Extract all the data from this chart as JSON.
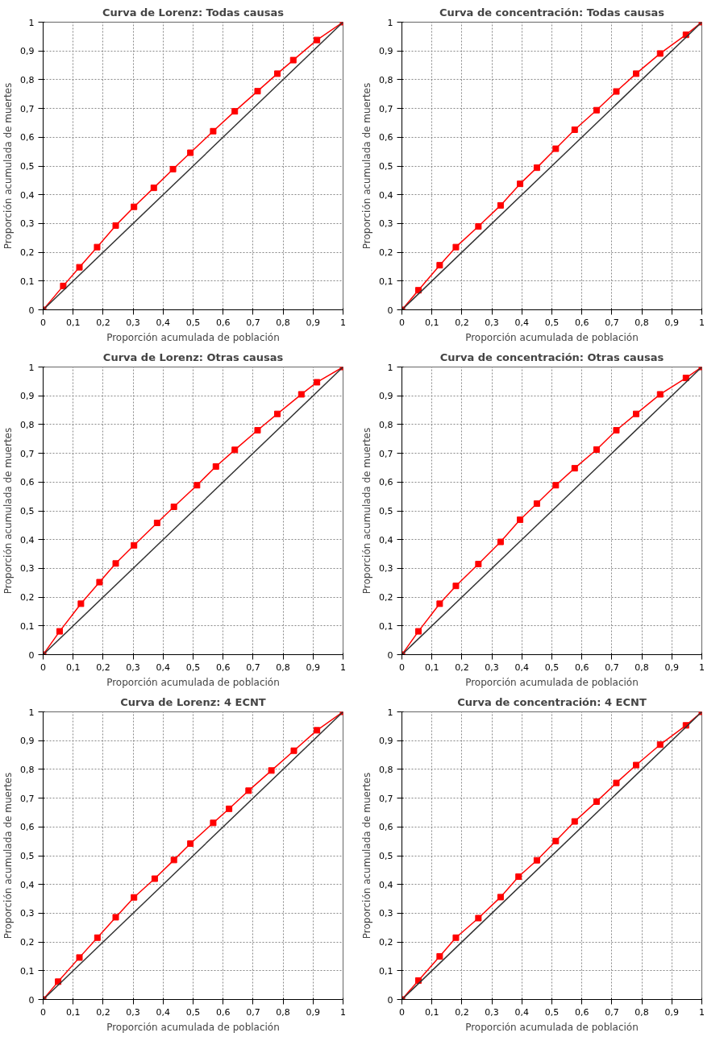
{
  "chart_data": [
    {
      "type": "line",
      "title": "Curva de Lorenz: Todas causas",
      "xlabel": "Proporción acumulada de población",
      "ylabel": "Proporción acumulada de muertes",
      "xlim": [
        0,
        1
      ],
      "ylim": [
        0,
        1
      ],
      "xticks": [
        0,
        {
          "value": 0.1,
          "label": "0,1"
        },
        {
          "value": 0.2,
          "label": "0,2"
        },
        {
          "value": 0.3,
          "label": "0,3"
        },
        {
          "value": 0.4,
          "label": "0,4"
        },
        {
          "value": 0.5,
          "label": "0,5"
        },
        {
          "value": 0.6,
          "label": "0,6"
        },
        {
          "value": 0.7,
          "label": "0,7"
        },
        {
          "value": 0.8,
          "label": "0,8"
        },
        {
          "value": 0.9,
          "label": "0,9"
        },
        1
      ],
      "yticks": [
        0,
        {
          "value": 0.1,
          "label": "0,1"
        },
        {
          "value": 0.2,
          "label": "0,2"
        },
        {
          "value": 0.3,
          "label": "0,3"
        },
        {
          "value": 0.4,
          "label": "0,4"
        },
        {
          "value": 0.5,
          "label": "0,5"
        },
        {
          "value": 0.6,
          "label": "0,6"
        },
        {
          "value": 0.7,
          "label": "0,7"
        },
        {
          "value": 0.8,
          "label": "0,8"
        },
        {
          "value": 0.9,
          "label": "0,9"
        },
        1
      ],
      "grid": true,
      "marker": "square",
      "series": [
        {
          "color": "#ff0000",
          "x": [
            0,
            0.067,
            0.121,
            0.18,
            0.242,
            0.303,
            0.369,
            0.433,
            0.491,
            0.567,
            0.639,
            0.715,
            0.781,
            0.834,
            0.913,
            1
          ],
          "values": [
            0,
            0.083,
            0.148,
            0.218,
            0.293,
            0.358,
            0.424,
            0.489,
            0.546,
            0.621,
            0.69,
            0.76,
            0.821,
            0.868,
            0.938,
            1
          ]
        },
        {
          "color": "#333333",
          "marker": "none",
          "x": [
            0,
            1
          ],
          "values": [
            0,
            1
          ]
        }
      ]
    },
    {
      "type": "line",
      "title": "Curva de concentración: Todas causas",
      "xlabel": "Proporción acumulada de población",
      "ylabel": "Proporción acumulada de muertes",
      "xlim": [
        0,
        1
      ],
      "ylim": [
        0,
        1
      ],
      "xticks": [
        0,
        {
          "value": 0.1,
          "label": "0,1"
        },
        {
          "value": 0.2,
          "label": "0,2"
        },
        {
          "value": 0.3,
          "label": "0,3"
        },
        {
          "value": 0.4,
          "label": "0,4"
        },
        {
          "value": 0.5,
          "label": "0,5"
        },
        {
          "value": 0.6,
          "label": "0,6"
        },
        {
          "value": 0.7,
          "label": "0,7"
        },
        {
          "value": 0.8,
          "label": "0,8"
        },
        {
          "value": 0.9,
          "label": "0,9"
        },
        1
      ],
      "yticks": [
        0,
        {
          "value": 0.1,
          "label": "0,1"
        },
        {
          "value": 0.2,
          "label": "0,2"
        },
        {
          "value": 0.3,
          "label": "0,3"
        },
        {
          "value": 0.4,
          "label": "0,4"
        },
        {
          "value": 0.5,
          "label": "0,5"
        },
        {
          "value": 0.6,
          "label": "0,6"
        },
        {
          "value": 0.7,
          "label": "0,7"
        },
        {
          "value": 0.8,
          "label": "0,8"
        },
        {
          "value": 0.9,
          "label": "0,9"
        },
        1
      ],
      "grid": true,
      "marker": "square",
      "series": [
        {
          "color": "#ff0000",
          "x": [
            0,
            0.055,
            0.126,
            0.18,
            0.255,
            0.329,
            0.394,
            0.45,
            0.513,
            0.576,
            0.649,
            0.715,
            0.781,
            0.861,
            0.947,
            1
          ],
          "values": [
            0,
            0.068,
            0.155,
            0.218,
            0.29,
            0.363,
            0.438,
            0.494,
            0.56,
            0.626,
            0.694,
            0.759,
            0.821,
            0.891,
            0.956,
            1
          ]
        },
        {
          "color": "#333333",
          "marker": "none",
          "x": [
            0,
            1
          ],
          "values": [
            0,
            1
          ]
        }
      ]
    },
    {
      "type": "line",
      "title": "Curva de Lorenz: Otras causas",
      "xlabel": "Proporción acumulada de población",
      "ylabel": "Proporción acumulada de muertes",
      "xlim": [
        0,
        1
      ],
      "ylim": [
        0,
        1
      ],
      "xticks": [
        0,
        {
          "value": 0.1,
          "label": "0,1"
        },
        {
          "value": 0.2,
          "label": "0,2"
        },
        {
          "value": 0.3,
          "label": "0,3"
        },
        {
          "value": 0.4,
          "label": "0,4"
        },
        {
          "value": 0.5,
          "label": "0,5"
        },
        {
          "value": 0.6,
          "label": "0,6"
        },
        {
          "value": 0.7,
          "label": "0,7"
        },
        {
          "value": 0.8,
          "label": "0,8"
        },
        {
          "value": 0.9,
          "label": "0,9"
        },
        1
      ],
      "yticks": [
        0,
        {
          "value": 0.1,
          "label": "0,1"
        },
        {
          "value": 0.2,
          "label": "0,2"
        },
        {
          "value": 0.3,
          "label": "0,3"
        },
        {
          "value": 0.4,
          "label": "0,4"
        },
        {
          "value": 0.5,
          "label": "0,5"
        },
        {
          "value": 0.6,
          "label": "0,6"
        },
        {
          "value": 0.7,
          "label": "0,7"
        },
        {
          "value": 0.8,
          "label": "0,8"
        },
        {
          "value": 0.9,
          "label": "0,9"
        },
        1
      ],
      "grid": true,
      "marker": "square",
      "series": [
        {
          "color": "#ff0000",
          "x": [
            0,
            0.055,
            0.126,
            0.188,
            0.242,
            0.303,
            0.38,
            0.436,
            0.513,
            0.576,
            0.639,
            0.715,
            0.781,
            0.861,
            0.913,
            1
          ],
          "values": [
            0,
            0.081,
            0.177,
            0.252,
            0.317,
            0.38,
            0.458,
            0.514,
            0.589,
            0.654,
            0.712,
            0.78,
            0.837,
            0.905,
            0.947,
            1
          ]
        },
        {
          "color": "#333333",
          "marker": "none",
          "x": [
            0,
            1
          ],
          "values": [
            0,
            1
          ]
        }
      ]
    },
    {
      "type": "line",
      "title": "Curva de concentración: Otras causas",
      "xlabel": "Proporción acumulada de población",
      "ylabel": "Proporción acumulada de muertes",
      "xlim": [
        0,
        1
      ],
      "ylim": [
        0,
        1
      ],
      "xticks": [
        0,
        {
          "value": 0.1,
          "label": "0,1"
        },
        {
          "value": 0.2,
          "label": "0,2"
        },
        {
          "value": 0.3,
          "label": "0,3"
        },
        {
          "value": 0.4,
          "label": "0,4"
        },
        {
          "value": 0.5,
          "label": "0,5"
        },
        {
          "value": 0.6,
          "label": "0,6"
        },
        {
          "value": 0.7,
          "label": "0,7"
        },
        {
          "value": 0.8,
          "label": "0,8"
        },
        {
          "value": 0.9,
          "label": "0,9"
        },
        1
      ],
      "yticks": [
        0,
        {
          "value": 0.1,
          "label": "0,1"
        },
        {
          "value": 0.2,
          "label": "0,2"
        },
        {
          "value": 0.3,
          "label": "0,3"
        },
        {
          "value": 0.4,
          "label": "0,4"
        },
        {
          "value": 0.5,
          "label": "0,5"
        },
        {
          "value": 0.6,
          "label": "0,6"
        },
        {
          "value": 0.7,
          "label": "0,7"
        },
        {
          "value": 0.8,
          "label": "0,8"
        },
        {
          "value": 0.9,
          "label": "0,9"
        },
        1
      ],
      "grid": true,
      "marker": "square",
      "series": [
        {
          "color": "#ff0000",
          "x": [
            0,
            0.055,
            0.126,
            0.18,
            0.255,
            0.329,
            0.394,
            0.45,
            0.513,
            0.576,
            0.649,
            0.715,
            0.781,
            0.861,
            0.947,
            1
          ],
          "values": [
            0,
            0.081,
            0.177,
            0.239,
            0.315,
            0.392,
            0.469,
            0.525,
            0.589,
            0.648,
            0.713,
            0.78,
            0.837,
            0.905,
            0.962,
            1
          ]
        },
        {
          "color": "#333333",
          "marker": "none",
          "x": [
            0,
            1
          ],
          "values": [
            0,
            1
          ]
        }
      ]
    },
    {
      "type": "line",
      "title": "Curva de Lorenz: 4 ECNT",
      "xlabel": "Proporción acumulada de población",
      "ylabel": "Proporción acumulada de muertes",
      "xlim": [
        0,
        1
      ],
      "ylim": [
        0,
        1
      ],
      "xticks": [
        0,
        {
          "value": 0.1,
          "label": "0,1"
        },
        {
          "value": 0.2,
          "label": "0,2"
        },
        {
          "value": 0.3,
          "label": "0,3"
        },
        {
          "value": 0.4,
          "label": "0,4"
        },
        {
          "value": 0.5,
          "label": "0,5"
        },
        {
          "value": 0.6,
          "label": "0,6"
        },
        {
          "value": 0.7,
          "label": "0,7"
        },
        {
          "value": 0.8,
          "label": "0,8"
        },
        {
          "value": 0.9,
          "label": "0,9"
        },
        1
      ],
      "yticks": [
        0,
        {
          "value": 0.1,
          "label": "0,1"
        },
        {
          "value": 0.2,
          "label": "0,2"
        },
        {
          "value": 0.3,
          "label": "0,3"
        },
        {
          "value": 0.4,
          "label": "0,4"
        },
        {
          "value": 0.5,
          "label": "0,5"
        },
        {
          "value": 0.6,
          "label": "0,6"
        },
        {
          "value": 0.7,
          "label": "0,7"
        },
        {
          "value": 0.8,
          "label": "0,8"
        },
        {
          "value": 0.9,
          "label": "0,9"
        },
        1
      ],
      "grid": true,
      "marker": "square",
      "series": [
        {
          "color": "#ff0000",
          "x": [
            0,
            0.05,
            0.121,
            0.181,
            0.242,
            0.303,
            0.372,
            0.436,
            0.491,
            0.567,
            0.62,
            0.685,
            0.761,
            0.836,
            0.913,
            1
          ],
          "values": [
            0,
            0.062,
            0.146,
            0.215,
            0.286,
            0.355,
            0.42,
            0.485,
            0.542,
            0.614,
            0.663,
            0.726,
            0.796,
            0.865,
            0.936,
            1
          ]
        },
        {
          "color": "#333333",
          "marker": "none",
          "x": [
            0,
            1
          ],
          "values": [
            0,
            1
          ]
        }
      ]
    },
    {
      "type": "line",
      "title": "Curva de concentración: 4 ECNT",
      "xlabel": "Proporción acumulada de población",
      "ylabel": "Proporción acumulada de muertes",
      "xlim": [
        0,
        1
      ],
      "ylim": [
        0,
        1
      ],
      "xticks": [
        0,
        {
          "value": 0.1,
          "label": "0,1"
        },
        {
          "value": 0.2,
          "label": "0,2"
        },
        {
          "value": 0.3,
          "label": "0,3"
        },
        {
          "value": 0.4,
          "label": "0,4"
        },
        {
          "value": 0.5,
          "label": "0,5"
        },
        {
          "value": 0.6,
          "label": "0,6"
        },
        {
          "value": 0.7,
          "label": "0,7"
        },
        {
          "value": 0.8,
          "label": "0,8"
        },
        {
          "value": 0.9,
          "label": "0,9"
        },
        1
      ],
      "yticks": [
        0,
        {
          "value": 0.1,
          "label": "0,1"
        },
        {
          "value": 0.2,
          "label": "0,2"
        },
        {
          "value": 0.3,
          "label": "0,3"
        },
        {
          "value": 0.4,
          "label": "0,4"
        },
        {
          "value": 0.5,
          "label": "0,5"
        },
        {
          "value": 0.6,
          "label": "0,6"
        },
        {
          "value": 0.7,
          "label": "0,7"
        },
        {
          "value": 0.8,
          "label": "0,8"
        },
        {
          "value": 0.9,
          "label": "0,9"
        },
        1
      ],
      "grid": true,
      "marker": "square",
      "series": [
        {
          "color": "#ff0000",
          "x": [
            0,
            0.055,
            0.126,
            0.18,
            0.255,
            0.329,
            0.389,
            0.45,
            0.513,
            0.576,
            0.649,
            0.715,
            0.781,
            0.861,
            0.947,
            1
          ],
          "values": [
            0,
            0.066,
            0.15,
            0.215,
            0.283,
            0.356,
            0.427,
            0.484,
            0.551,
            0.619,
            0.688,
            0.753,
            0.815,
            0.886,
            0.953,
            1
          ]
        },
        {
          "color": "#333333",
          "marker": "none",
          "x": [
            0,
            1
          ],
          "values": [
            0,
            1
          ]
        }
      ]
    }
  ]
}
